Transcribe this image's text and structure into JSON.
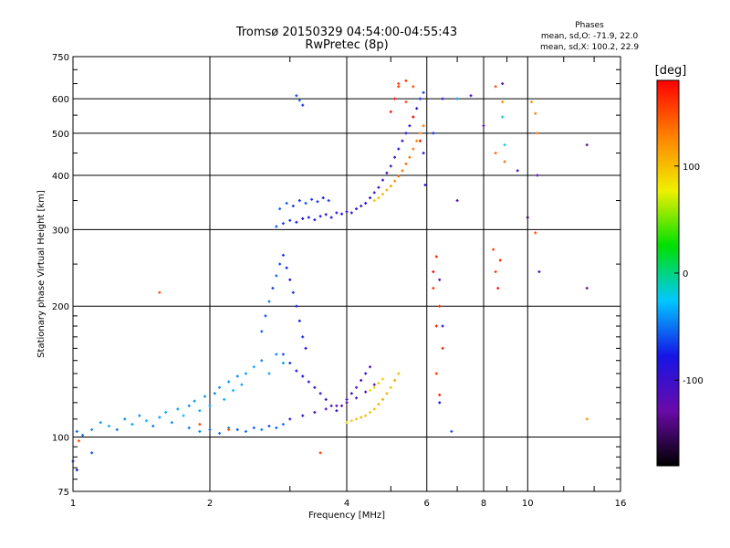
{
  "chart_data": {
    "type": "scatter",
    "title": "Tromsø 20150329 04:54:00-04:55:43",
    "subtitle": "RwPretec (8p)",
    "xlabel": "Frequency [MHz]",
    "ylabel": "Stationary phase Virtual Height [km]",
    "x_scale": "log2",
    "y_scale": "log",
    "xlim": [
      1,
      16
    ],
    "ylim": [
      75,
      750
    ],
    "x_ticks": [
      "1",
      "2",
      "4",
      "6",
      "8",
      "10",
      "16"
    ],
    "y_ticks": [
      "75",
      "100",
      "200",
      "300",
      "400",
      "500",
      "600",
      "750"
    ],
    "grid": true,
    "stats": {
      "header": "Phases",
      "line_o": "mean, sd,O: -71.9, 22.0",
      "line_x": "mean, sd,X: 100.2, 22.9"
    },
    "colorbar": {
      "label": "[deg]",
      "range": [
        -180,
        180
      ],
      "ticks": [
        "100",
        "0",
        "-100"
      ],
      "colors": [
        "#000000",
        "#6a0aa8",
        "#1515e6",
        "#00c8ff",
        "#00e000",
        "#f0f000",
        "#ff8000",
        "#ff0000"
      ]
    },
    "series": [
      {
        "points": [
          [
            1.02,
            103,
            -55
          ],
          [
            1.05,
            101,
            -50
          ],
          [
            1.1,
            104,
            -45
          ],
          [
            1.15,
            108,
            -40
          ],
          [
            1.2,
            106,
            -35
          ],
          [
            1.25,
            104,
            -48
          ],
          [
            1.3,
            110,
            -42
          ],
          [
            1.35,
            107,
            -38
          ],
          [
            1.4,
            112,
            -45
          ],
          [
            1.45,
            109,
            -30
          ],
          [
            1.5,
            106,
            -50
          ],
          [
            1.55,
            111,
            -40
          ],
          [
            1.6,
            114,
            -35
          ],
          [
            1.65,
            108,
            -42
          ],
          [
            1.7,
            116,
            -38
          ],
          [
            1.75,
            112,
            -30
          ],
          [
            1.8,
            118,
            -45
          ],
          [
            1.85,
            121,
            -40
          ],
          [
            1.9,
            115,
            -35
          ],
          [
            1.95,
            124,
            -42
          ],
          [
            2.0,
            118,
            -38
          ],
          [
            2.05,
            126,
            -45
          ],
          [
            2.1,
            130,
            -40
          ],
          [
            2.15,
            122,
            -35
          ],
          [
            2.2,
            134,
            -42
          ],
          [
            2.25,
            128,
            -30
          ],
          [
            2.3,
            138,
            -45
          ],
          [
            2.35,
            132,
            -38
          ],
          [
            2.4,
            140,
            -40
          ],
          [
            2.5,
            145,
            -35
          ],
          [
            2.6,
            150,
            -42
          ],
          [
            2.7,
            140,
            -38
          ],
          [
            2.8,
            155,
            -45
          ],
          [
            2.9,
            148,
            -40
          ],
          [
            1.8,
            105,
            -50
          ],
          [
            1.9,
            103,
            -45
          ],
          [
            2.0,
            104,
            -55
          ],
          [
            2.1,
            102,
            -50
          ],
          [
            2.2,
            105,
            -45
          ],
          [
            2.3,
            104,
            -60
          ],
          [
            2.4,
            103,
            -50
          ],
          [
            2.5,
            105,
            -55
          ],
          [
            2.6,
            104,
            -45
          ],
          [
            2.7,
            106,
            -60
          ],
          [
            2.8,
            105,
            -55
          ],
          [
            2.9,
            107,
            -50
          ],
          [
            2.6,
            175,
            -55
          ],
          [
            2.65,
            190,
            -60
          ],
          [
            2.7,
            205,
            -50
          ],
          [
            2.75,
            220,
            -65
          ],
          [
            2.8,
            235,
            -55
          ],
          [
            2.85,
            250,
            -60
          ],
          [
            2.9,
            262,
            -70
          ],
          [
            2.95,
            245,
            -75
          ],
          [
            3.0,
            230,
            -80
          ],
          [
            3.05,
            215,
            -70
          ],
          [
            3.1,
            200,
            -75
          ],
          [
            3.15,
            185,
            -80
          ],
          [
            3.2,
            170,
            -70
          ],
          [
            3.25,
            160,
            -85
          ],
          [
            2.9,
            155,
            -60
          ],
          [
            3.0,
            148,
            -70
          ],
          [
            3.1,
            142,
            -75
          ],
          [
            3.2,
            138,
            -80
          ],
          [
            3.3,
            134,
            -85
          ],
          [
            3.4,
            130,
            -90
          ],
          [
            3.5,
            126,
            -95
          ],
          [
            3.6,
            122,
            -100
          ],
          [
            3.7,
            118,
            -105
          ],
          [
            3.8,
            115,
            -100
          ],
          [
            3.9,
            118,
            -110
          ],
          [
            4.0,
            122,
            -105
          ],
          [
            4.1,
            126,
            -100
          ],
          [
            4.2,
            130,
            -110
          ],
          [
            4.3,
            135,
            -105
          ],
          [
            4.4,
            140,
            -100
          ],
          [
            4.5,
            145,
            -110
          ],
          [
            3.0,
            110,
            -95
          ],
          [
            3.2,
            112,
            -100
          ],
          [
            3.4,
            114,
            -105
          ],
          [
            3.6,
            116,
            -110
          ],
          [
            3.8,
            118,
            -115
          ],
          [
            4.0,
            120,
            -110
          ],
          [
            4.2,
            123,
            -105
          ],
          [
            4.4,
            127,
            -110
          ],
          [
            4.6,
            132,
            -115
          ],
          [
            2.8,
            305,
            -60
          ],
          [
            2.9,
            310,
            -65
          ],
          [
            3.0,
            315,
            -70
          ],
          [
            3.1,
            312,
            -75
          ],
          [
            3.2,
            318,
            -80
          ],
          [
            3.3,
            320,
            -85
          ],
          [
            3.4,
            316,
            -80
          ],
          [
            3.5,
            322,
            -90
          ],
          [
            3.6,
            325,
            -85
          ],
          [
            3.7,
            320,
            -80
          ],
          [
            3.8,
            328,
            -90
          ],
          [
            3.9,
            326,
            -85
          ],
          [
            4.0,
            330,
            -95
          ],
          [
            4.1,
            328,
            -90
          ],
          [
            4.2,
            335,
            -95
          ],
          [
            4.3,
            340,
            -100
          ],
          [
            4.4,
            345,
            -90
          ],
          [
            2.85,
            335,
            -55
          ],
          [
            2.95,
            345,
            -60
          ],
          [
            3.05,
            340,
            -65
          ],
          [
            3.15,
            350,
            -70
          ],
          [
            3.25,
            345,
            -60
          ],
          [
            3.35,
            352,
            -65
          ],
          [
            3.45,
            348,
            -70
          ],
          [
            3.55,
            355,
            -75
          ],
          [
            3.65,
            350,
            -65
          ],
          [
            4.5,
            355,
            -95
          ],
          [
            4.6,
            365,
            -100
          ],
          [
            4.7,
            375,
            -90
          ],
          [
            4.8,
            390,
            -95
          ],
          [
            4.9,
            405,
            -100
          ],
          [
            5.0,
            420,
            -90
          ],
          [
            5.1,
            440,
            -95
          ],
          [
            5.2,
            460,
            -85
          ],
          [
            5.3,
            480,
            -90
          ],
          [
            5.4,
            500,
            -80
          ],
          [
            5.5,
            520,
            -85
          ],
          [
            5.6,
            545,
            -75
          ],
          [
            5.7,
            570,
            -80
          ],
          [
            5.8,
            600,
            -70
          ],
          [
            5.9,
            620,
            -65
          ],
          [
            3.1,
            610,
            -60
          ],
          [
            3.15,
            595,
            -55
          ],
          [
            3.2,
            580,
            -65
          ]
        ]
      },
      {
        "points": [
          [
            4.0,
            108,
            90
          ],
          [
            4.1,
            109,
            95
          ],
          [
            4.2,
            110,
            100
          ],
          [
            4.3,
            111,
            105
          ],
          [
            4.4,
            112,
            100
          ],
          [
            4.5,
            114,
            95
          ],
          [
            4.6,
            116,
            100
          ],
          [
            4.7,
            119,
            105
          ],
          [
            4.8,
            122,
            110
          ],
          [
            4.9,
            126,
            105
          ],
          [
            5.0,
            130,
            100
          ],
          [
            5.1,
            135,
            110
          ],
          [
            5.2,
            140,
            105
          ],
          [
            4.5,
            128,
            85
          ],
          [
            4.6,
            130,
            90
          ],
          [
            4.7,
            133,
            95
          ],
          [
            4.8,
            136,
            90
          ],
          [
            4.6,
            350,
            95
          ],
          [
            4.7,
            355,
            100
          ],
          [
            4.8,
            362,
            105
          ],
          [
            4.9,
            370,
            110
          ],
          [
            5.0,
            378,
            120
          ],
          [
            5.1,
            388,
            125
          ],
          [
            5.2,
            398,
            130
          ],
          [
            5.3,
            410,
            135
          ],
          [
            5.4,
            425,
            140
          ],
          [
            5.5,
            440,
            135
          ],
          [
            5.6,
            460,
            130
          ],
          [
            5.7,
            480,
            125
          ],
          [
            5.8,
            500,
            120
          ],
          [
            5.9,
            520,
            130
          ],
          [
            5.0,
            560,
            170
          ],
          [
            5.1,
            600,
            175
          ],
          [
            5.2,
            640,
            160
          ],
          [
            5.4,
            590,
            150
          ],
          [
            5.6,
            545,
            170
          ],
          [
            5.8,
            480,
            175
          ],
          [
            5.2,
            650,
            155
          ],
          [
            5.4,
            660,
            160
          ],
          [
            5.6,
            640,
            150
          ],
          [
            1.03,
            98,
            150
          ],
          [
            1.55,
            215,
            150
          ],
          [
            1.9,
            107,
            155
          ],
          [
            3.5,
            92,
            155
          ],
          [
            2.2,
            104,
            150
          ],
          [
            6.2,
            240,
            175
          ],
          [
            6.3,
            260,
            170
          ],
          [
            6.2,
            220,
            160
          ],
          [
            6.4,
            200,
            165
          ],
          [
            6.3,
            180,
            170
          ],
          [
            6.5,
            160,
            165
          ],
          [
            6.3,
            140,
            160
          ],
          [
            6.4,
            125,
            170
          ],
          [
            8.5,
            240,
            160
          ],
          [
            8.6,
            220,
            170
          ],
          [
            8.4,
            270,
            155
          ],
          [
            8.7,
            255,
            165
          ],
          [
            8.5,
            640,
            150
          ],
          [
            8.8,
            590,
            120
          ],
          [
            8.5,
            450,
            140
          ],
          [
            8.9,
            430,
            135
          ],
          [
            10.4,
            555,
            130
          ],
          [
            10.5,
            500,
            130
          ],
          [
            10.2,
            590,
            120
          ],
          [
            10.4,
            295,
            150
          ],
          [
            13.5,
            110,
            120
          ]
        ]
      },
      {
        "points": [
          [
            5.9,
            450,
            -90
          ],
          [
            5.95,
            380,
            -85
          ],
          [
            6.2,
            500,
            -70
          ],
          [
            6.5,
            600,
            -100
          ],
          [
            7.0,
            350,
            -120
          ],
          [
            7.5,
            610,
            -110
          ],
          [
            8.0,
            520,
            -125
          ],
          [
            8.8,
            650,
            -115
          ],
          [
            9.5,
            410,
            -115
          ],
          [
            10.0,
            320,
            -150
          ],
          [
            10.5,
            400,
            -120
          ],
          [
            13.5,
            470,
            -130
          ],
          [
            13.5,
            220,
            -130
          ],
          [
            10.6,
            240,
            -110
          ],
          [
            6.4,
            230,
            -110
          ],
          [
            6.5,
            180,
            -95
          ],
          [
            6.4,
            120,
            -80
          ],
          [
            6.8,
            103,
            -60
          ],
          [
            1.0,
            88,
            -70
          ],
          [
            1.02,
            84,
            -80
          ],
          [
            1.1,
            92,
            -60
          ],
          [
            8.8,
            545,
            -10
          ],
          [
            8.9,
            470,
            -20
          ],
          [
            7.0,
            600,
            -40
          ]
        ]
      }
    ]
  }
}
